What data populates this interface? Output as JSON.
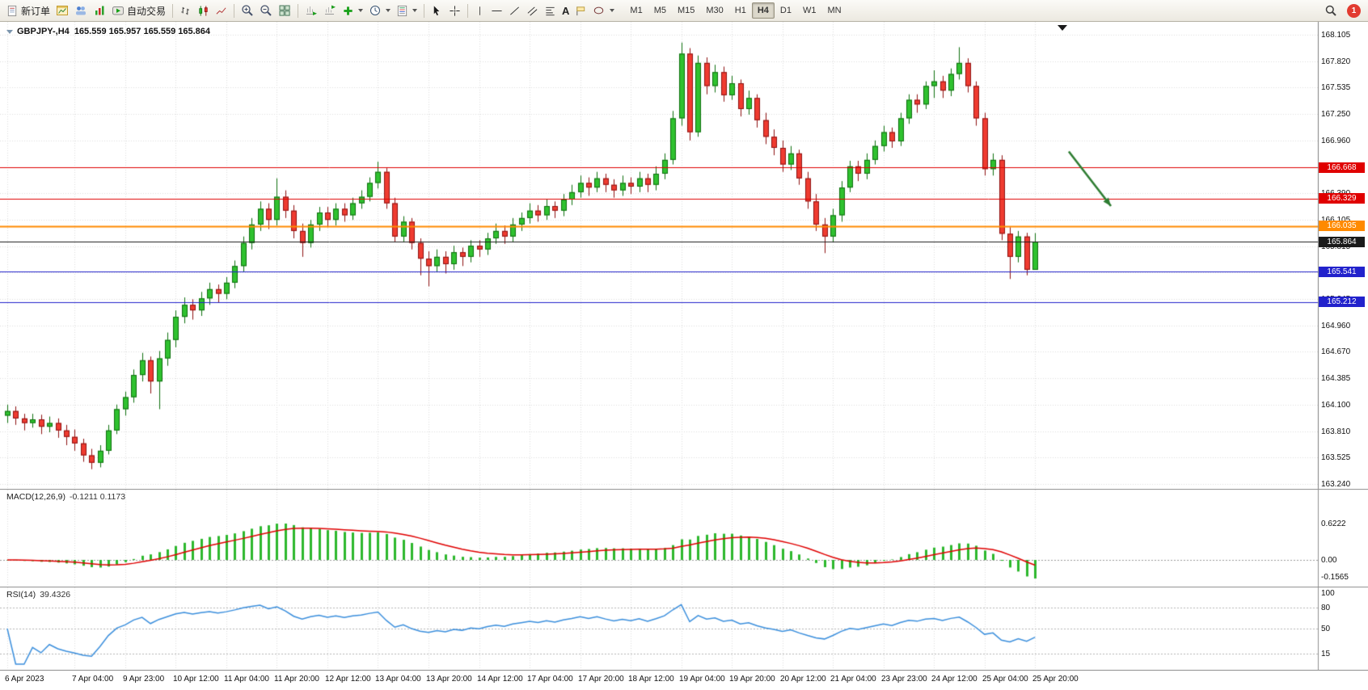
{
  "toolbar": {
    "new_order_label": "新订单",
    "auto_trading_label": "自动交易",
    "text_tool_label": "A",
    "timeframes": [
      "M1",
      "M5",
      "M15",
      "M30",
      "H1",
      "H4",
      "D1",
      "W1",
      "MN"
    ],
    "active_timeframe": "H4",
    "notification_count": "1"
  },
  "chart": {
    "title_symbol": "GBPJPY-,H4",
    "title_ohlc": "165.559 165.957 165.559 165.864",
    "grid_color": "#dedede",
    "price_axis_labels": [
      "168.105",
      "167.820",
      "167.535",
      "167.250",
      "166.960",
      "166.675",
      "166.390",
      "166.105",
      "165.815",
      "165.530",
      "165.245",
      "164.960",
      "164.670",
      "164.385",
      "164.100",
      "163.810",
      "163.525",
      "163.240"
    ],
    "time_axis_labels": [
      "6 Apr 2023",
      "7 Apr 04:00",
      "9 Apr 23:00",
      "10 Apr 12:00",
      "11 Apr 04:00",
      "11 Apr 20:00",
      "12 Apr 12:00",
      "13 Apr 04:00",
      "13 Apr 20:00",
      "14 Apr 12:00",
      "17 Apr 04:00",
      "17 Apr 20:00",
      "18 Apr 12:00",
      "19 Apr 04:00",
      "19 Apr 20:00",
      "20 Apr 12:00",
      "21 Apr 04:00",
      "23 Apr 23:00",
      "24 Apr 12:00",
      "25 Apr 04:00",
      "25 Apr 20:00"
    ],
    "price_levels": [
      {
        "price": 166.668,
        "label": "166.668",
        "color": "#e00000",
        "line_width": 1,
        "style": "resistance"
      },
      {
        "price": 166.329,
        "label": "166.329",
        "color": "#e00000",
        "line_width": 1,
        "style": "resistance"
      },
      {
        "price": 166.035,
        "label": "166.035",
        "color": "#ff8a00",
        "line_width": 2,
        "style": "pivot"
      },
      {
        "price": 165.864,
        "label": "165.864",
        "color": "#1a1a1a",
        "line_width": 1,
        "style": "bid"
      },
      {
        "price": 165.541,
        "label": "165.541",
        "color": "#2222cc",
        "line_width": 1,
        "style": "support"
      },
      {
        "price": 165.212,
        "label": "165.212",
        "color": "#2222cc",
        "line_width": 1,
        "style": "support"
      }
    ],
    "arrow_annotation": {
      "from_index": 126,
      "from_price": 166.84,
      "to_index": 131,
      "to_price": 166.25,
      "color": "#2e7d32"
    }
  },
  "macd_panel": {
    "label": "MACD(12,26,9)",
    "values": "-0.1211 0.1173",
    "axis_labels": [
      "0.6222",
      "0.00",
      "-0.1565"
    ],
    "histogram_color": "#2db82d",
    "signal_color": "#e00000",
    "params": {
      "fast": 12,
      "slow": 26,
      "signal": 9
    }
  },
  "rsi_panel": {
    "label": "RSI(14)",
    "value": "39.4326",
    "axis_labels": [
      "100",
      "80",
      "50",
      "15"
    ],
    "levels": [
      80,
      50,
      15
    ],
    "line_color": "#3b8fdd",
    "period": 14
  },
  "chart_data": {
    "type": "candlestick",
    "symbol": "GBPJPY-",
    "period": "H4",
    "ohlc_order": [
      "open",
      "high",
      "low",
      "close"
    ],
    "y_range": [
      163.24,
      168.105
    ],
    "up_color": "#2fc12f",
    "down_color": "#ef3b30",
    "time_label_indices": [
      0,
      8,
      14,
      20,
      26,
      32,
      38,
      44,
      50,
      56,
      62,
      68,
      74,
      80,
      86,
      92,
      98,
      104,
      110,
      116,
      122
    ],
    "candles": [
      [
        163.98,
        164.1,
        163.9,
        164.03
      ],
      [
        164.03,
        164.08,
        163.88,
        163.95
      ],
      [
        163.95,
        164.0,
        163.82,
        163.9
      ],
      [
        163.9,
        164.0,
        163.85,
        163.94
      ],
      [
        163.94,
        163.99,
        163.78,
        163.86
      ],
      [
        163.86,
        163.97,
        163.8,
        163.9
      ],
      [
        163.9,
        163.95,
        163.74,
        163.82
      ],
      [
        163.82,
        163.88,
        163.66,
        163.75
      ],
      [
        163.75,
        163.83,
        163.6,
        163.68
      ],
      [
        163.68,
        163.73,
        163.48,
        163.55
      ],
      [
        163.55,
        163.62,
        163.4,
        163.47
      ],
      [
        163.47,
        163.66,
        163.42,
        163.6
      ],
      [
        163.6,
        163.88,
        163.56,
        163.82
      ],
      [
        163.82,
        164.1,
        163.78,
        164.05
      ],
      [
        164.05,
        164.24,
        163.98,
        164.18
      ],
      [
        164.18,
        164.48,
        164.12,
        164.42
      ],
      [
        164.42,
        164.66,
        164.35,
        164.58
      ],
      [
        164.58,
        164.62,
        164.22,
        164.35
      ],
      [
        164.35,
        164.68,
        164.05,
        164.6
      ],
      [
        164.6,
        164.88,
        164.52,
        164.8
      ],
      [
        164.8,
        165.12,
        164.72,
        165.05
      ],
      [
        165.05,
        165.26,
        164.98,
        165.18
      ],
      [
        165.18,
        165.24,
        165.02,
        165.12
      ],
      [
        165.12,
        165.32,
        165.06,
        165.25
      ],
      [
        165.25,
        165.42,
        165.18,
        165.35
      ],
      [
        165.35,
        165.4,
        165.2,
        165.3
      ],
      [
        165.3,
        165.48,
        165.24,
        165.42
      ],
      [
        165.42,
        165.66,
        165.36,
        165.6
      ],
      [
        165.6,
        165.92,
        165.54,
        165.85
      ],
      [
        165.85,
        166.12,
        165.78,
        166.05
      ],
      [
        166.05,
        166.3,
        165.98,
        166.22
      ],
      [
        166.22,
        166.28,
        166.0,
        166.1
      ],
      [
        166.1,
        166.55,
        166.04,
        166.35
      ],
      [
        166.35,
        166.42,
        166.12,
        166.2
      ],
      [
        166.2,
        166.26,
        165.9,
        165.98
      ],
      [
        165.98,
        166.06,
        165.7,
        165.85
      ],
      [
        165.85,
        166.1,
        165.8,
        166.05
      ],
      [
        166.05,
        166.24,
        165.98,
        166.18
      ],
      [
        166.18,
        166.24,
        166.02,
        166.1
      ],
      [
        166.1,
        166.28,
        166.04,
        166.22
      ],
      [
        166.22,
        166.28,
        166.08,
        166.15
      ],
      [
        166.15,
        166.34,
        166.1,
        166.28
      ],
      [
        166.28,
        166.42,
        166.22,
        166.35
      ],
      [
        166.35,
        166.56,
        166.3,
        166.5
      ],
      [
        166.5,
        166.73,
        166.44,
        166.62
      ],
      [
        166.62,
        166.66,
        166.22,
        166.28
      ],
      [
        166.28,
        166.34,
        165.86,
        165.92
      ],
      [
        165.92,
        166.14,
        165.86,
        166.08
      ],
      [
        166.08,
        166.12,
        165.78,
        165.85
      ],
      [
        165.85,
        165.9,
        165.5,
        165.68
      ],
      [
        165.68,
        165.76,
        165.38,
        165.6
      ],
      [
        165.6,
        165.78,
        165.54,
        165.7
      ],
      [
        165.7,
        165.76,
        165.52,
        165.62
      ],
      [
        165.62,
        165.82,
        165.56,
        165.75
      ],
      [
        165.75,
        165.8,
        165.6,
        165.7
      ],
      [
        165.7,
        165.88,
        165.64,
        165.82
      ],
      [
        165.82,
        165.88,
        165.7,
        165.78
      ],
      [
        165.78,
        165.96,
        165.72,
        165.9
      ],
      [
        165.9,
        166.06,
        165.84,
        165.98
      ],
      [
        165.98,
        166.04,
        165.84,
        165.92
      ],
      [
        165.92,
        166.12,
        165.86,
        166.05
      ],
      [
        166.05,
        166.18,
        165.98,
        166.12
      ],
      [
        166.12,
        166.28,
        166.06,
        166.2
      ],
      [
        166.2,
        166.26,
        166.08,
        166.15
      ],
      [
        166.15,
        166.32,
        166.1,
        166.25
      ],
      [
        166.25,
        166.3,
        166.12,
        166.2
      ],
      [
        166.2,
        166.38,
        166.14,
        166.32
      ],
      [
        166.32,
        166.48,
        166.26,
        166.4
      ],
      [
        166.4,
        166.58,
        166.34,
        166.5
      ],
      [
        166.5,
        166.56,
        166.36,
        166.45
      ],
      [
        166.45,
        166.62,
        166.4,
        166.55
      ],
      [
        166.55,
        166.6,
        166.4,
        166.48
      ],
      [
        166.48,
        166.54,
        166.34,
        166.42
      ],
      [
        166.42,
        166.58,
        166.36,
        166.5
      ],
      [
        166.5,
        166.56,
        166.38,
        166.46
      ],
      [
        166.46,
        166.62,
        166.4,
        166.55
      ],
      [
        166.55,
        166.6,
        166.4,
        166.48
      ],
      [
        166.48,
        166.68,
        166.42,
        166.6
      ],
      [
        166.6,
        166.82,
        166.54,
        166.75
      ],
      [
        166.75,
        167.28,
        166.7,
        167.2
      ],
      [
        167.2,
        168.02,
        167.12,
        167.9
      ],
      [
        167.9,
        167.96,
        166.96,
        167.05
      ],
      [
        167.05,
        167.88,
        167.0,
        167.8
      ],
      [
        167.8,
        167.86,
        167.46,
        167.55
      ],
      [
        167.55,
        167.78,
        167.48,
        167.7
      ],
      [
        167.7,
        167.76,
        167.38,
        167.45
      ],
      [
        167.45,
        167.66,
        167.4,
        167.58
      ],
      [
        167.58,
        167.62,
        167.22,
        167.3
      ],
      [
        167.3,
        167.5,
        167.24,
        167.42
      ],
      [
        167.42,
        167.46,
        167.1,
        167.18
      ],
      [
        167.18,
        167.26,
        166.92,
        167.0
      ],
      [
        167.0,
        167.08,
        166.8,
        166.88
      ],
      [
        166.88,
        166.96,
        166.62,
        166.7
      ],
      [
        166.7,
        166.9,
        166.64,
        166.82
      ],
      [
        166.82,
        166.86,
        166.48,
        166.55
      ],
      [
        166.55,
        166.62,
        166.22,
        166.3
      ],
      [
        166.3,
        166.38,
        165.98,
        166.05
      ],
      [
        166.05,
        166.12,
        165.74,
        165.92
      ],
      [
        165.92,
        166.22,
        165.86,
        166.15
      ],
      [
        166.15,
        166.52,
        166.08,
        166.45
      ],
      [
        166.45,
        166.74,
        166.4,
        166.68
      ],
      [
        166.68,
        166.74,
        166.52,
        166.6
      ],
      [
        166.6,
        166.82,
        166.54,
        166.75
      ],
      [
        166.75,
        166.96,
        166.7,
        166.9
      ],
      [
        166.9,
        167.12,
        166.84,
        167.05
      ],
      [
        167.05,
        167.1,
        166.88,
        166.95
      ],
      [
        166.95,
        167.26,
        166.9,
        167.2
      ],
      [
        167.2,
        167.46,
        167.14,
        167.4
      ],
      [
        167.4,
        167.46,
        167.26,
        167.35
      ],
      [
        167.35,
        167.6,
        167.3,
        167.55
      ],
      [
        167.55,
        167.72,
        167.42,
        167.6
      ],
      [
        167.6,
        167.66,
        167.42,
        167.5
      ],
      [
        167.5,
        167.74,
        167.44,
        167.68
      ],
      [
        167.68,
        167.97,
        167.62,
        167.8
      ],
      [
        167.8,
        167.85,
        167.48,
        167.55
      ],
      [
        167.55,
        167.6,
        167.12,
        167.2
      ],
      [
        167.2,
        167.26,
        166.58,
        166.65
      ],
      [
        166.65,
        166.82,
        166.58,
        166.75
      ],
      [
        166.75,
        166.8,
        165.88,
        165.95
      ],
      [
        165.95,
        166.02,
        165.46,
        165.7
      ],
      [
        165.7,
        165.98,
        165.64,
        165.92
      ],
      [
        165.92,
        165.96,
        165.5,
        165.56
      ],
      [
        165.559,
        165.957,
        165.559,
        165.864
      ]
    ]
  }
}
